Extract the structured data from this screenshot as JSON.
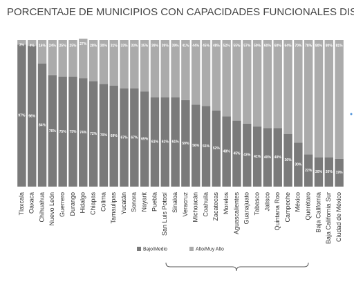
{
  "chart_data": {
    "type": "stacked_bar",
    "title": "PORCENTAJE DE MUNICIPIOS CON CAPACIDADES FUNCIONALES DISPARES",
    "categories": [
      "Tlaxcala",
      "Oaxaca",
      "Chihuahua",
      "Nuevo León",
      "Guerrero",
      "Durango",
      "Hidalgo",
      "Chiapas",
      "Colima",
      "Tamaulipas",
      "Yucatán",
      "Sonora",
      "Nayarit",
      "Puebla",
      "San Luis Potosí",
      "Sinaloa",
      "Veracruz",
      "Michoacán",
      "Coahuila",
      "Zacatecas",
      "Morelos",
      "Aguascalientes",
      "Guanajuato",
      "Tabasco",
      "Jalisco",
      "Quintana Roo",
      "Campeche",
      "México",
      "Querétaro",
      "Baja California",
      "Baja California Sur",
      "Ciudad de México"
    ],
    "ylim": [
      0,
      100
    ],
    "series": [
      {
        "name": "Bajo/Medio",
        "color": "#7a7a7a",
        "values": [
          97,
          96,
          84,
          76,
          75,
          75,
          74,
          72,
          70,
          69,
          67,
          67,
          65,
          61,
          61,
          61,
          59,
          56,
          55,
          52,
          48,
          45,
          43,
          41,
          40,
          40,
          36,
          30,
          22,
          20,
          20,
          19
        ],
        "value_labels": [
          "97%",
          "96%",
          "84%",
          "76%",
          "75%",
          "75%",
          "74%",
          "72%",
          "70%",
          "69%",
          "67%",
          "67%",
          "65%",
          "61%",
          "61%",
          "61%",
          "59%",
          "56%",
          "55%",
          "52%",
          "48%",
          "45%",
          "43%",
          "41%",
          "40%",
          "40%",
          "36%",
          "30%",
          "22%",
          "20%",
          "20%",
          "19%"
        ]
      },
      {
        "name": "Alto/Muy Alto",
        "color": "#ababab",
        "values": [
          3,
          4,
          16,
          24,
          25,
          25,
          27,
          28,
          30,
          31,
          33,
          33,
          35,
          39,
          39,
          39,
          41,
          44,
          45,
          48,
          52,
          55,
          57,
          59,
          60,
          60,
          64,
          70,
          78,
          80,
          80,
          81
        ],
        "value_labels": [
          "3%",
          "4%",
          "16%",
          "24%",
          "25%",
          "25%",
          "27%",
          "28%",
          "30%",
          "31%",
          "33%",
          "33%",
          "35%",
          "39%",
          "39%",
          "39%",
          "41%",
          "44%",
          "45%",
          "48%",
          "52%",
          "55%",
          "57%",
          "59%",
          "60%",
          "60%",
          "64%",
          "70%",
          "78%",
          "80%",
          "80%",
          "81%"
        ]
      }
    ]
  }
}
